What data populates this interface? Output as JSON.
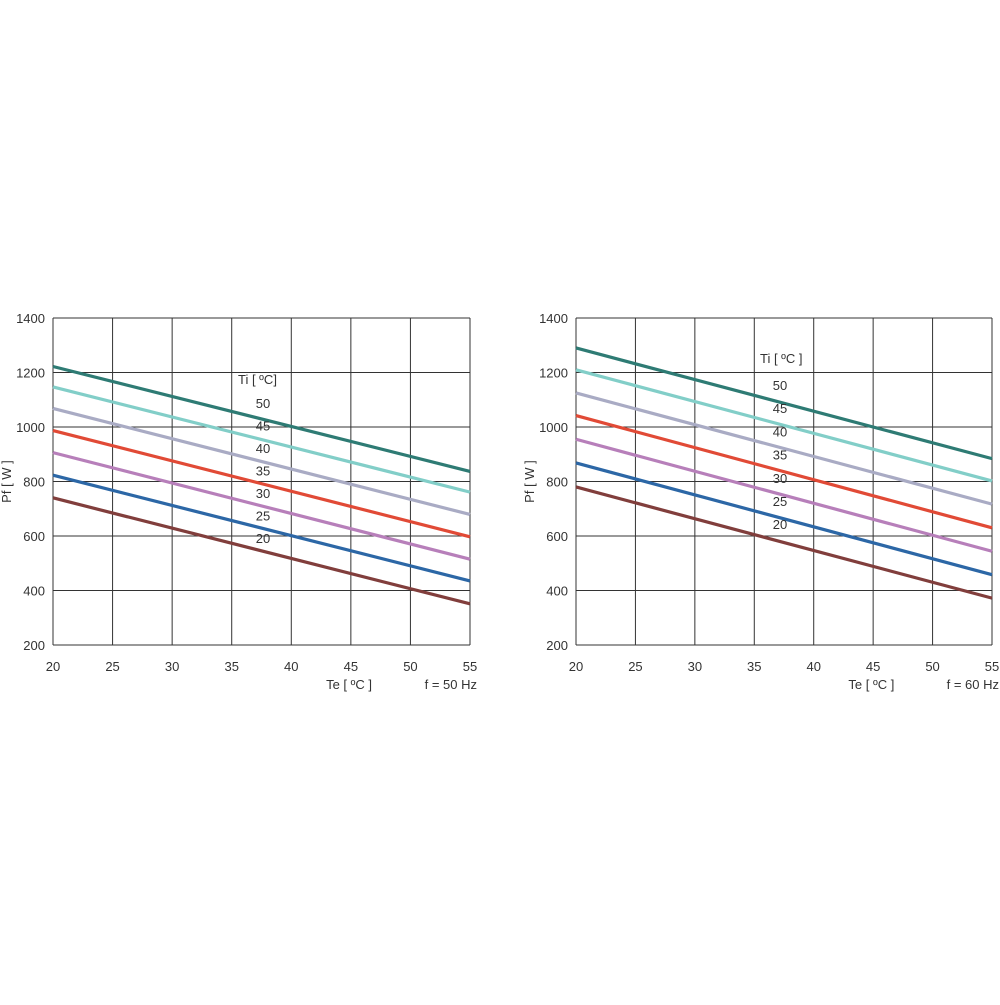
{
  "chart_data": [
    {
      "type": "line",
      "xlabel": "Te  [ ºC ]",
      "ylabel": "Pf  [ W ]",
      "note": "f = 50 Hz",
      "legend_title": "Ti  [ ºC]",
      "xlim": [
        20,
        55
      ],
      "ylim": [
        200,
        1400
      ],
      "x_ticks": [
        20,
        25,
        30,
        35,
        40,
        45,
        50,
        55
      ],
      "y_ticks": [
        200,
        400,
        600,
        800,
        1000,
        1200,
        1400
      ],
      "grid": true,
      "x": [
        20,
        55
      ],
      "series": [
        {
          "name": "50",
          "color": "#2e7b74",
          "values": [
            1222,
            837
          ]
        },
        {
          "name": "45",
          "color": "#82cec8",
          "values": [
            1147,
            761
          ]
        },
        {
          "name": "40",
          "color": "#a9abc4",
          "values": [
            1068,
            679
          ]
        },
        {
          "name": "35",
          "color": "#e14a36",
          "values": [
            987,
            597
          ]
        },
        {
          "name": "30",
          "color": "#b77fba",
          "values": [
            906,
            515
          ]
        },
        {
          "name": "25",
          "color": "#2c67a6",
          "values": [
            823,
            435
          ]
        },
        {
          "name": "20",
          "color": "#813e3c",
          "values": [
            740,
            351
          ]
        }
      ]
    },
    {
      "type": "line",
      "xlabel": "Te  [ ºC ]",
      "ylabel": "Pf  [ W ]",
      "note": "f = 60 Hz",
      "legend_title": "Ti  [ ºC ]",
      "xlim": [
        20,
        55
      ],
      "ylim": [
        200,
        1400
      ],
      "x_ticks": [
        20,
        25,
        30,
        35,
        40,
        45,
        50,
        55
      ],
      "y_ticks": [
        200,
        400,
        600,
        800,
        1000,
        1200,
        1400
      ],
      "grid": true,
      "x": [
        20,
        55
      ],
      "series": [
        {
          "name": "50",
          "color": "#2e7b74",
          "values": [
            1290,
            884
          ]
        },
        {
          "name": "45",
          "color": "#82cec8",
          "values": [
            1210,
            802
          ]
        },
        {
          "name": "40",
          "color": "#a9abc4",
          "values": [
            1125,
            717
          ]
        },
        {
          "name": "35",
          "color": "#e14a36",
          "values": [
            1042,
            630
          ]
        },
        {
          "name": "30",
          "color": "#b77fba",
          "values": [
            955,
            544
          ]
        },
        {
          "name": "25",
          "color": "#2c67a6",
          "values": [
            868,
            458
          ]
        },
        {
          "name": "20",
          "color": "#813e3c",
          "values": [
            780,
            372
          ]
        }
      ]
    }
  ]
}
